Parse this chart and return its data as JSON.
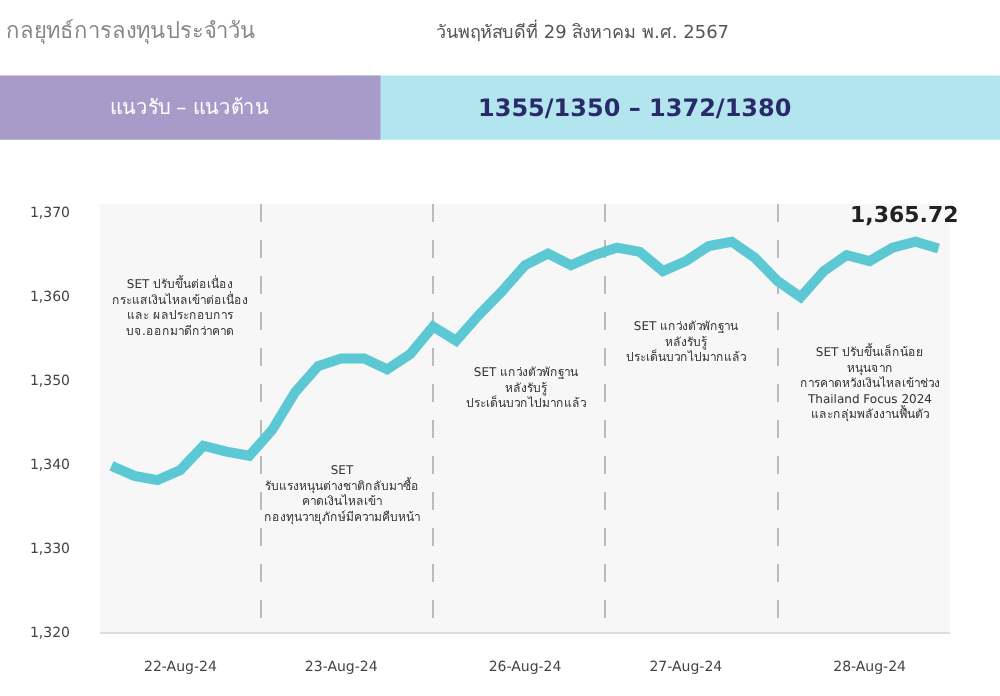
{
  "chart_data": {
    "type": "line",
    "title": "กลยุทธ์การลงทุนประจำวัน",
    "subtitle": "วันพฤหัสบดีที่ 29 สิงหาคม พ.ศ. 2567",
    "categories": [
      null,
      null,
      null,
      "22-Aug-24",
      null,
      null,
      null,
      null,
      null,
      null,
      "23-Aug-24",
      null,
      null,
      null,
      null,
      null,
      null,
      null,
      "26-Aug-24",
      null,
      null,
      null,
      null,
      null,
      null,
      "27-Aug-24",
      null,
      null,
      null,
      null,
      null,
      null,
      null,
      "28-Aug-24",
      null,
      null,
      null
    ],
    "series": [
      {
        "color": "#5bc8d4",
        "values": [
          1339.8,
          1338.6,
          1338.1,
          1339.3,
          1342.2,
          1341.5,
          1341.0,
          1344.1,
          1348.6,
          1351.7,
          1352.6,
          1352.6,
          1351.3,
          1353.1,
          1356.4,
          1354.7,
          1357.8,
          1360.6,
          1363.7,
          1365.1,
          1363.7,
          1364.9,
          1365.8,
          1365.3,
          1363.0,
          1364.2,
          1366.0,
          1366.5,
          1364.6,
          1361.8,
          1359.9,
          1363.0,
          1364.9,
          1364.2,
          1365.8,
          1366.5,
          1365.7
        ]
      }
    ],
    "ylim": [
      1320,
      1371
    ],
    "yticks": [
      {
        "value": 1320,
        "label": "1,320"
      },
      {
        "value": 1330,
        "label": "1,330"
      },
      {
        "value": 1340,
        "label": "1,340"
      },
      {
        "value": 1350,
        "label": "1,350"
      },
      {
        "value": 1360,
        "label": "1,360"
      },
      {
        "value": 1370,
        "label": "1,370"
      }
    ],
    "annotations": [
      "แนวรับ – แนวต้าน",
      "1355/1350 – 1372/1380",
      "SET ปรับขึ้นต่อเนื่อง กระแสเงินไหลเข้าต่อเนื่อง และ ผลประกอบการ บจ.ออกมาดีกว่าคาด",
      "SET รับแรงหนุนต่างชาติกลับมาซื้อ คาดเงินไหลเข้า กองทุนวายุภักษ์มีความคืบหน้า",
      "SET แกว่งตัวพักฐาน หลังรับรู้ ประเด็นบวกไปมากแล้ว",
      "SET แกว่งตัวพักฐาน หลังรับรู้ ประเด็นบวกไปมากแล้ว",
      "SET ปรับขึ้นเล็กน้อย หนุนจาก การคาดหวังเงินไหลเข้าช่วง Thailand Focus 2024 และกลุ่มพลังงานฟื้นตัว",
      "1,365.72"
    ],
    "grid": "x",
    "legend": false,
    "marker": "none",
    "line_style": "solid"
  }
}
